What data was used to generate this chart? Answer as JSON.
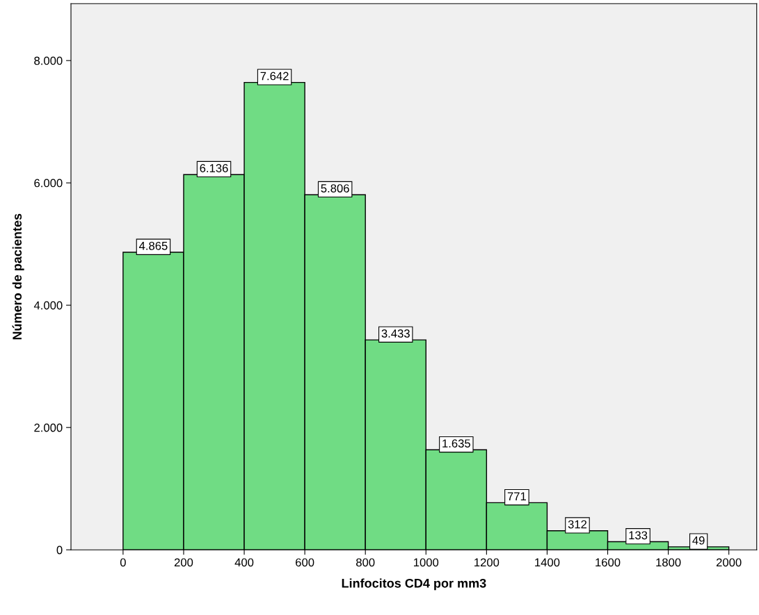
{
  "chart_data": {
    "type": "histogram",
    "xlabel": "Linfocitos CD4 por mm3",
    "ylabel": "Número de pacientes",
    "bins": [
      0,
      200,
      400,
      600,
      800,
      1000,
      1200,
      1400,
      1600,
      1800,
      2000
    ],
    "values": [
      4865,
      6136,
      7642,
      5806,
      3433,
      1635,
      771,
      312,
      133,
      49
    ],
    "value_labels": [
      "4.865",
      "6.136",
      "7.642",
      "5.806",
      "3.433",
      "1.635",
      "771",
      "312",
      "133",
      "49"
    ],
    "color": "#70dc84",
    "xlim": [
      -172,
      2092
    ],
    "xticks": [
      0,
      200,
      400,
      600,
      800,
      1000,
      1200,
      1400,
      1600,
      1800,
      2000
    ],
    "ylim": [
      0,
      8930
    ],
    "yticks": [
      {
        "value": 0,
        "label": "0"
      },
      {
        "value": 2000,
        "label": "2.000"
      },
      {
        "value": 4000,
        "label": "4.000"
      },
      {
        "value": 6000,
        "label": "6.000"
      },
      {
        "value": 8000,
        "label": "8.000"
      }
    ],
    "grid": false,
    "legend": false
  }
}
